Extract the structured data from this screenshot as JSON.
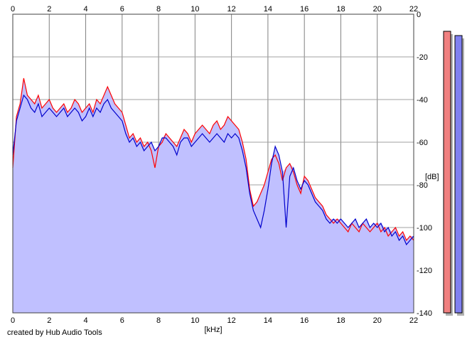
{
  "credit": "created by Hub Audio Tools",
  "chart_data": {
    "type": "area",
    "xlabel": "[kHz]",
    "ylabel": "[dB]",
    "xlim": [
      0,
      22
    ],
    "ylim": [
      -140,
      0
    ],
    "x_ticks": [
      0,
      2,
      4,
      6,
      8,
      10,
      12,
      14,
      16,
      18,
      20,
      22
    ],
    "y_ticks": [
      0,
      -20,
      -40,
      -60,
      -80,
      -100,
      -120,
      -140
    ],
    "grid": true,
    "colors": {
      "fill": "#c0c0ff",
      "left": "#ff0000",
      "right": "#0000cc",
      "left_meter": "#f08080",
      "right_meter": "#8080f0"
    },
    "series": [
      {
        "color": "red",
        "x": [
          0,
          0.2,
          0.4,
          0.6,
          0.8,
          1.0,
          1.2,
          1.4,
          1.6,
          1.8,
          2.0,
          2.2,
          2.4,
          2.6,
          2.8,
          3.0,
          3.2,
          3.4,
          3.6,
          3.8,
          4.0,
          4.2,
          4.4,
          4.6,
          4.8,
          5.0,
          5.2,
          5.4,
          5.6,
          5.8,
          6.0,
          6.2,
          6.4,
          6.6,
          6.8,
          7.0,
          7.2,
          7.4,
          7.6,
          7.8,
          8.0,
          8.2,
          8.4,
          8.6,
          8.8,
          9.0,
          9.2,
          9.4,
          9.6,
          9.8,
          10.0,
          10.2,
          10.4,
          10.6,
          10.8,
          11.0,
          11.2,
          11.4,
          11.6,
          11.8,
          12.0,
          12.2,
          12.4,
          12.6,
          12.8,
          13.0,
          13.2,
          13.4,
          13.6,
          13.8,
          14.0,
          14.2,
          14.4,
          14.6,
          14.8,
          15.0,
          15.2,
          15.4,
          15.6,
          15.8,
          16.0,
          16.2,
          16.4,
          16.6,
          16.8,
          17.0,
          17.2,
          17.4,
          17.6,
          17.8,
          18.0,
          18.2,
          18.4,
          18.6,
          18.8,
          19.0,
          19.2,
          19.4,
          19.6,
          19.8,
          20.0,
          20.2,
          20.4,
          20.6,
          20.8,
          21.0,
          21.2,
          21.4,
          21.6,
          21.8,
          22.0
        ],
        "values": [
          -72,
          -48,
          -42,
          -30,
          -38,
          -40,
          -42,
          -38,
          -44,
          -42,
          -40,
          -44,
          -46,
          -44,
          -42,
          -46,
          -44,
          -40,
          -42,
          -46,
          -44,
          -42,
          -46,
          -40,
          -42,
          -38,
          -34,
          -38,
          -42,
          -44,
          -46,
          -52,
          -58,
          -56,
          -60,
          -58,
          -62,
          -60,
          -64,
          -72,
          -62,
          -60,
          -56,
          -58,
          -60,
          -62,
          -58,
          -54,
          -56,
          -60,
          -56,
          -54,
          -52,
          -54,
          -56,
          -52,
          -50,
          -54,
          -52,
          -48,
          -50,
          -52,
          -54,
          -60,
          -68,
          -82,
          -90,
          -88,
          -84,
          -80,
          -74,
          -68,
          -66,
          -70,
          -78,
          -72,
          -70,
          -74,
          -80,
          -84,
          -76,
          -78,
          -82,
          -86,
          -88,
          -90,
          -94,
          -96,
          -98,
          -96,
          -98,
          -100,
          -102,
          -98,
          -100,
          -102,
          -98,
          -100,
          -102,
          -100,
          -98,
          -102,
          -100,
          -104,
          -102,
          -100,
          -104,
          -102,
          -106,
          -104,
          -106
        ]
      },
      {
        "color": "blue",
        "x": [
          0,
          0.2,
          0.4,
          0.6,
          0.8,
          1.0,
          1.2,
          1.4,
          1.6,
          1.8,
          2.0,
          2.2,
          2.4,
          2.6,
          2.8,
          3.0,
          3.2,
          3.4,
          3.6,
          3.8,
          4.0,
          4.2,
          4.4,
          4.6,
          4.8,
          5.0,
          5.2,
          5.4,
          5.6,
          5.8,
          6.0,
          6.2,
          6.4,
          6.6,
          6.8,
          7.0,
          7.2,
          7.4,
          7.6,
          7.8,
          8.0,
          8.2,
          8.4,
          8.6,
          8.8,
          9.0,
          9.2,
          9.4,
          9.6,
          9.8,
          10.0,
          10.2,
          10.4,
          10.6,
          10.8,
          11.0,
          11.2,
          11.4,
          11.6,
          11.8,
          12.0,
          12.2,
          12.4,
          12.6,
          12.8,
          13.0,
          13.2,
          13.4,
          13.6,
          13.8,
          14.0,
          14.2,
          14.4,
          14.6,
          14.8,
          15.0,
          15.2,
          15.4,
          15.6,
          15.8,
          16.0,
          16.2,
          16.4,
          16.6,
          16.8,
          17.0,
          17.2,
          17.4,
          17.6,
          17.8,
          18.0,
          18.2,
          18.4,
          18.6,
          18.8,
          19.0,
          19.2,
          19.4,
          19.6,
          19.8,
          20.0,
          20.2,
          20.4,
          20.6,
          20.8,
          21.0,
          21.2,
          21.4,
          21.6,
          21.8,
          22.0
        ],
        "values": [
          -66,
          -50,
          -44,
          -38,
          -40,
          -44,
          -46,
          -42,
          -48,
          -46,
          -44,
          -46,
          -48,
          -46,
          -44,
          -48,
          -46,
          -44,
          -46,
          -50,
          -48,
          -44,
          -48,
          -44,
          -46,
          -42,
          -40,
          -44,
          -46,
          -48,
          -50,
          -56,
          -60,
          -58,
          -62,
          -60,
          -64,
          -62,
          -60,
          -64,
          -62,
          -58,
          -58,
          -60,
          -62,
          -66,
          -60,
          -58,
          -58,
          -62,
          -60,
          -58,
          -56,
          -58,
          -60,
          -58,
          -56,
          -58,
          -60,
          -56,
          -58,
          -56,
          -58,
          -64,
          -72,
          -84,
          -92,
          -96,
          -100,
          -92,
          -82,
          -70,
          -62,
          -66,
          -74,
          -100,
          -76,
          -72,
          -78,
          -82,
          -78,
          -80,
          -84,
          -88,
          -90,
          -92,
          -96,
          -98,
          -96,
          -98,
          -96,
          -98,
          -100,
          -98,
          -96,
          -100,
          -98,
          -96,
          -100,
          -98,
          -100,
          -98,
          -102,
          -100,
          -104,
          -102,
          -106,
          -104,
          -108,
          -106,
          -104
        ]
      }
    ],
    "meters": [
      {
        "color": "red",
        "level_db": -8
      },
      {
        "color": "blue",
        "level_db": -10
      }
    ]
  }
}
